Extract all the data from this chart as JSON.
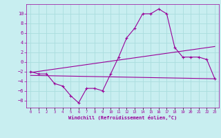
{
  "xlabel": "Windchill (Refroidissement éolien,°C)",
  "background_color": "#c8eef0",
  "grid_color": "#aadddd",
  "line_color": "#990099",
  "x_hours": [
    0,
    1,
    2,
    3,
    4,
    5,
    6,
    7,
    8,
    9,
    10,
    11,
    12,
    13,
    14,
    15,
    16,
    17,
    18,
    19,
    20,
    21,
    22,
    23
  ],
  "windchill": [
    -2,
    -2.5,
    -2.5,
    -4.5,
    -5,
    -7,
    -8.5,
    -5.5,
    -5.5,
    -6,
    -2.5,
    1,
    5,
    7,
    10,
    10,
    11,
    10,
    3,
    1,
    1,
    1,
    0.5,
    -3.5
  ],
  "line2_x": [
    0,
    23
  ],
  "line2_y": [
    -2.2,
    3.2
  ],
  "line3_x": [
    0,
    23
  ],
  "line3_y": [
    -2.8,
    -3.5
  ],
  "ylim": [
    -9.5,
    12
  ],
  "yticks": [
    -8,
    -6,
    -4,
    -2,
    0,
    2,
    4,
    6,
    8,
    10
  ],
  "xlim": [
    -0.5,
    23.5
  ]
}
